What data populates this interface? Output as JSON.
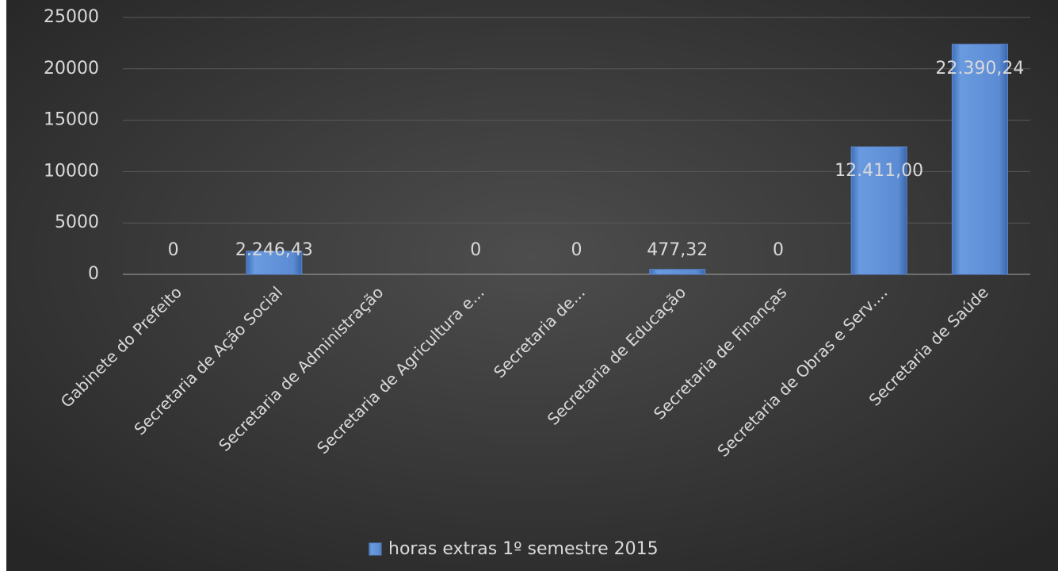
{
  "chart_data": {
    "type": "bar",
    "categories": [
      "Gabinete do Prefeito",
      "Secretaria de Ação Social",
      "Secretaria de Administração",
      "Secretaria de Agricultura e...",
      "Secretaria de...",
      "Secretaria de Educação",
      "Secretaria de Finanças",
      "Secretaria de Obras e Serv....",
      "Secretaria de Saúde"
    ],
    "series": [
      {
        "name": "horas extras 1º semestre 2015",
        "color": "#5b8bd3",
        "values": [
          0,
          2246.43,
          null,
          0,
          0,
          477.32,
          0,
          12411,
          22390.24
        ],
        "value_labels": [
          "0",
          "2.246,43",
          null,
          "0",
          "0",
          "477,32",
          "0",
          "12.411,00",
          "22.390,24"
        ]
      }
    ],
    "ylim": [
      0,
      25000
    ],
    "yticks": [
      0,
      5000,
      10000,
      15000,
      20000,
      25000
    ],
    "grid": true,
    "legend": "bottom"
  }
}
